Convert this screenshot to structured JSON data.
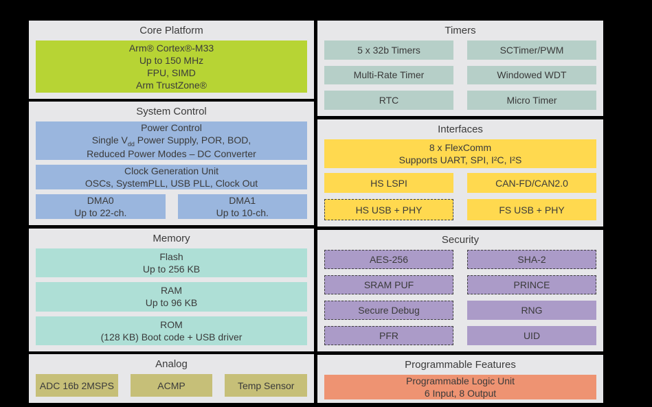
{
  "colors": {
    "background": "#000000",
    "panel": "#e7e7e9",
    "text": "#3a3a3a",
    "core_green": "#b7d434",
    "system_blue": "#9ab6de",
    "memory_mint": "#aedfd6",
    "timers_teal": "#b6cfc8",
    "interfaces_yellow": "#ffd94f",
    "security_purple": "#ab9bc8",
    "analog_olive": "#c6bf78",
    "programmable_salmon": "#ee9372"
  },
  "core_platform": {
    "title": "Core Platform",
    "lines": [
      "Arm® Cortex®-M33",
      "Up to 150 MHz",
      "FPU, SIMD",
      "Arm TrustZone®"
    ]
  },
  "system_control": {
    "title": "System Control",
    "power_control": {
      "line1": "Power Control",
      "line2_pre": "Single V",
      "line2_sub": "dd",
      "line2_post": " Power Supply, POR, BOD,",
      "line3": "Reduced Power Modes – DC Converter"
    },
    "clock_generation": {
      "line1": "Clock Generation Unit",
      "line2": "OSCs, SystemPLL, USB PLL, Clock Out"
    },
    "dma0": {
      "line1": "DMA0",
      "line2": "Up to 22-ch."
    },
    "dma1": {
      "line1": "DMA1",
      "line2": "Up to 10-ch."
    }
  },
  "memory": {
    "title": "Memory",
    "flash": {
      "line1": "Flash",
      "line2": "Up to 256 KB"
    },
    "ram": {
      "line1": "RAM",
      "line2": "Up to 96 KB"
    },
    "rom": {
      "line1": "ROM",
      "line2": "(128 KB) Boot code + USB driver"
    }
  },
  "analog": {
    "title": "Analog",
    "blocks": [
      "ADC 16b 2MSPS",
      "ACMP",
      "Temp Sensor"
    ]
  },
  "timers": {
    "title": "Timers",
    "blocks": [
      "5 x 32b Timers",
      "SCTimer/PWM",
      "Multi-Rate Timer",
      "Windowed WDT",
      "RTC",
      "Micro Timer"
    ]
  },
  "interfaces": {
    "title": "Interfaces",
    "flexcomm": {
      "line1": "8 x FlexComm",
      "line2": "Supports UART, SPI, I²C, I²S"
    },
    "blocks": [
      "HS LSPI",
      "CAN-FD/CAN2.0",
      "HS USB + PHY",
      "FS USB + PHY"
    ]
  },
  "security": {
    "title": "Security",
    "blocks": [
      "AES-256",
      "SHA-2",
      "SRAM PUF",
      "PRINCE",
      "Secure Debug",
      "RNG",
      "PFR",
      "UID"
    ]
  },
  "programmable_features": {
    "title": "Programmable Features",
    "plu": {
      "line1": "Programmable Logic Unit",
      "line2": "6 Input, 8 Output"
    }
  }
}
